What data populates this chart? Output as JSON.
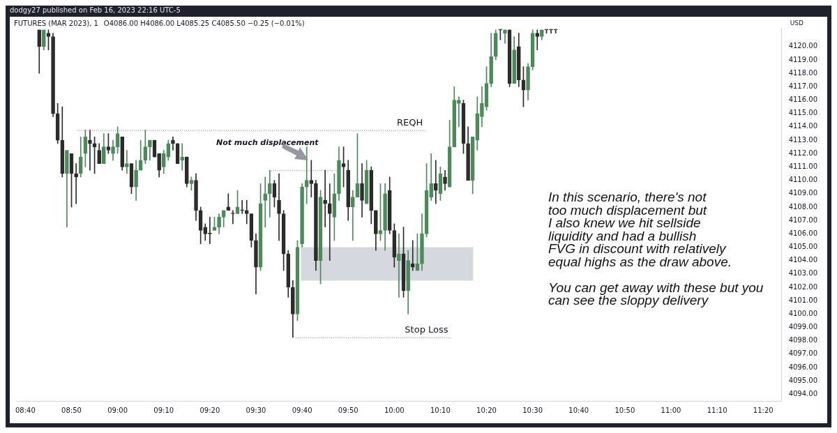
{
  "chart_data": {
    "type": "candlestick",
    "title": "FUTURES (MAR 2023), 1",
    "subtitle": "O4086.00 H4086.00 L4085.25 C4085.50 −0.25 (−0.01%)",
    "ylabel": "USD",
    "annotations": [
      "dodgy27 published on Feb 16, 2023 22:16 UTC-5",
      "Not much displacement",
      "In this scenario, there's not\ntoo much displacement but\nI also knew we hit sellside\nliquidity and had a bullish\nFVG in discount with relatively\nequal highs as the draw above.\n\nYou can get away with these but you\ncan see the sloppy delivery"
    ],
    "x": [
      "2023-02-16T08:43",
      "2023-02-16T08:44",
      "2023-02-16T08:45",
      "2023-02-16T08:46",
      "2023-02-16T08:47",
      "2023-02-16T08:48",
      "2023-02-16T08:49",
      "2023-02-16T08:50",
      "2023-02-16T08:51",
      "2023-02-16T08:52",
      "2023-02-16T08:53",
      "2023-02-16T08:54",
      "2023-02-16T08:55",
      "2023-02-16T08:56",
      "2023-02-16T08:57",
      "2023-02-16T08:58",
      "2023-02-16T08:59",
      "2023-02-16T09:00",
      "2023-02-16T09:01",
      "2023-02-16T09:02",
      "2023-02-16T09:03",
      "2023-02-16T09:04",
      "2023-02-16T09:05",
      "2023-02-16T09:06",
      "2023-02-16T09:07",
      "2023-02-16T09:08",
      "2023-02-16T09:09",
      "2023-02-16T09:10",
      "2023-02-16T09:11",
      "2023-02-16T09:12",
      "2023-02-16T09:13",
      "2023-02-16T09:14",
      "2023-02-16T09:15",
      "2023-02-16T09:16",
      "2023-02-16T09:17",
      "2023-02-16T09:18",
      "2023-02-16T09:19",
      "2023-02-16T09:20",
      "2023-02-16T09:21",
      "2023-02-16T09:22",
      "2023-02-16T09:23",
      "2023-02-16T09:24",
      "2023-02-16T09:25",
      "2023-02-16T09:26",
      "2023-02-16T09:27",
      "2023-02-16T09:28",
      "2023-02-16T09:29",
      "2023-02-16T09:30",
      "2023-02-16T09:31",
      "2023-02-16T09:32",
      "2023-02-16T09:33",
      "2023-02-16T09:34",
      "2023-02-16T09:35",
      "2023-02-16T09:36",
      "2023-02-16T09:37",
      "2023-02-16T09:38",
      "2023-02-16T09:39",
      "2023-02-16T09:40",
      "2023-02-16T09:41",
      "2023-02-16T09:42",
      "2023-02-16T09:43",
      "2023-02-16T09:44",
      "2023-02-16T09:45",
      "2023-02-16T09:46",
      "2023-02-16T09:47",
      "2023-02-16T09:48",
      "2023-02-16T09:49",
      "2023-02-16T09:50",
      "2023-02-16T09:51",
      "2023-02-16T09:52",
      "2023-02-16T09:53",
      "2023-02-16T09:54",
      "2023-02-16T09:55",
      "2023-02-16T09:56",
      "2023-02-16T09:57",
      "2023-02-16T09:58",
      "2023-02-16T09:59",
      "2023-02-16T10:00",
      "2023-02-16T10:01",
      "2023-02-16T10:02",
      "2023-02-16T10:03",
      "2023-02-16T10:04",
      "2023-02-16T10:05",
      "2023-02-16T10:06",
      "2023-02-16T10:07",
      "2023-02-16T10:08",
      "2023-02-16T10:09",
      "2023-02-16T10:10",
      "2023-02-16T10:11",
      "2023-02-16T10:12",
      "2023-02-16T10:13",
      "2023-02-16T10:14",
      "2023-02-16T10:15",
      "2023-02-16T10:16",
      "2023-02-16T10:17",
      "2023-02-16T10:18",
      "2023-02-16T10:19",
      "2023-02-16T10:20",
      "2023-02-16T10:21",
      "2023-02-16T10:22",
      "2023-02-16T10:23",
      "2023-02-16T10:24",
      "2023-02-16T10:25",
      "2023-02-16T10:26",
      "2023-02-16T10:27",
      "2023-02-16T10:28",
      "2023-02-16T10:29",
      "2023-02-16T10:30",
      "2023-02-16T10:31",
      "2023-02-16T10:32",
      "2023-02-16T10:33",
      "2023-02-16T10:34",
      "2023-02-16T10:35"
    ],
    "ohlc": [
      [
        4121.25,
        4121.25,
        4118.0,
        4120.0
      ],
      [
        4120.0,
        4121.25,
        4119.75,
        4121.25
      ],
      [
        4121.0,
        4121.25,
        4119.75,
        4120.75
      ],
      [
        4120.75,
        4121.0,
        4114.75,
        4115.0
      ],
      [
        4115.0,
        4115.75,
        4112.75,
        4113.0
      ],
      [
        4113.0,
        4115.5,
        4110.25,
        4110.5
      ],
      [
        4110.5,
        4112.25,
        4106.5,
        4112.25
      ],
      [
        4112.0,
        4112.0,
        4108.0,
        4110.5
      ],
      [
        4110.5,
        4111.25,
        4108.25,
        4110.25
      ],
      [
        4110.5,
        4113.25,
        4110.25,
        4111.75
      ],
      [
        4112.0,
        4113.75,
        4111.0,
        4113.25
      ],
      [
        4113.0,
        4113.75,
        4110.75,
        4112.75
      ],
      [
        4112.75,
        4113.25,
        4110.5,
        4112.5
      ],
      [
        4112.25,
        4112.75,
        4111.25,
        4111.25
      ],
      [
        4111.25,
        4113.5,
        4111.25,
        4112.5
      ],
      [
        4112.5,
        4113.5,
        4112.0,
        4112.25
      ],
      [
        4112.0,
        4113.0,
        4111.5,
        4112.5
      ],
      [
        4112.5,
        4114.0,
        4112.0,
        4113.5
      ],
      [
        4113.25,
        4113.25,
        4110.75,
        4111.0
      ],
      [
        4111.0,
        4112.25,
        4110.5,
        4111.25
      ],
      [
        4111.25,
        4111.25,
        4109.0,
        4109.5
      ],
      [
        4109.5,
        4111.5,
        4108.5,
        4110.75
      ],
      [
        4110.75,
        4113.0,
        4110.75,
        4111.5
      ],
      [
        4111.5,
        4113.75,
        4111.25,
        4112.5
      ],
      [
        4112.5,
        4113.0,
        4111.5,
        4113.0
      ],
      [
        4113.0,
        4113.0,
        4111.75,
        4111.75
      ],
      [
        4112.0,
        4112.0,
        4110.25,
        4110.75
      ],
      [
        4111.0,
        4112.25,
        4110.5,
        4112.0
      ],
      [
        4111.75,
        4113.0,
        4111.5,
        4112.75
      ],
      [
        4113.0,
        4113.25,
        4112.25,
        4112.75
      ],
      [
        4112.75,
        4112.75,
        4111.25,
        4111.25
      ],
      [
        4111.5,
        4112.75,
        4110.75,
        4111.75
      ],
      [
        4111.75,
        4111.75,
        4109.5,
        4109.75
      ],
      [
        4109.75,
        4110.25,
        4109.25,
        4110.0
      ],
      [
        4110.0,
        4110.5,
        4107.0,
        4107.75
      ],
      [
        4107.75,
        4108.0,
        4105.25,
        4106.25
      ],
      [
        4106.5,
        4106.75,
        4105.5,
        4106.0
      ],
      [
        4106.0,
        4107.25,
        4105.25,
        4106.0
      ],
      [
        4106.25,
        4107.25,
        4106.25,
        4106.5
      ],
      [
        4106.5,
        4107.5,
        4106.0,
        4107.25
      ],
      [
        4107.25,
        4107.75,
        4106.5,
        4107.75
      ],
      [
        4108.0,
        4109.0,
        4107.75,
        4107.75
      ],
      [
        4107.5,
        4107.75,
        4106.75,
        4107.5
      ],
      [
        4107.5,
        4109.25,
        4107.5,
        4108.0
      ],
      [
        4107.75,
        4108.5,
        4107.5,
        4107.75
      ],
      [
        4107.75,
        4108.5,
        4106.75,
        4107.5
      ],
      [
        4107.5,
        4107.5,
        4105.0,
        4105.5
      ],
      [
        4105.5,
        4106.0,
        4101.5,
        4103.5
      ],
      [
        4103.5,
        4109.75,
        4103.25,
        4108.25
      ],
      [
        4108.5,
        4110.25,
        4106.5,
        4109.0
      ],
      [
        4109.0,
        4110.75,
        4107.25,
        4109.75
      ],
      [
        4109.75,
        4110.0,
        4108.0,
        4108.75
      ],
      [
        4108.5,
        4110.5,
        4105.5,
        4107.5
      ],
      [
        4107.5,
        4107.75,
        4103.25,
        4104.5
      ],
      [
        4104.5,
        4104.75,
        4101.25,
        4102.0
      ],
      [
        4102.0,
        4102.5,
        4098.25,
        4100.0
      ],
      [
        4100.0,
        4105.5,
        4099.5,
        4105.0
      ],
      [
        4105.25,
        4109.75,
        4105.0,
        4109.5
      ],
      [
        4109.5,
        4112.5,
        4108.25,
        4110.0
      ],
      [
        4110.0,
        4111.5,
        4108.75,
        4109.75
      ],
      [
        4109.75,
        4110.0,
        4103.25,
        4104.0
      ],
      [
        4104.0,
        4109.25,
        4102.25,
        4108.75
      ],
      [
        4108.5,
        4110.75,
        4106.5,
        4108.25
      ],
      [
        4108.25,
        4109.75,
        4104.0,
        4107.5
      ],
      [
        4107.25,
        4110.5,
        4105.5,
        4109.0
      ],
      [
        4109.0,
        4112.5,
        4108.5,
        4111.5
      ],
      [
        4111.25,
        4112.5,
        4109.5,
        4111.0
      ],
      [
        4110.75,
        4111.5,
        4107.0,
        4108.0
      ],
      [
        4108.0,
        4109.25,
        4105.5,
        4108.75
      ],
      [
        4108.75,
        4113.5,
        4108.75,
        4109.75
      ],
      [
        4109.75,
        4111.25,
        4107.25,
        4108.5
      ],
      [
        4108.25,
        4111.5,
        4108.25,
        4110.75
      ],
      [
        4110.75,
        4111.0,
        4106.75,
        4107.75
      ],
      [
        4107.75,
        4107.75,
        4104.75,
        4106.0
      ],
      [
        4106.0,
        4109.75,
        4105.5,
        4106.25
      ],
      [
        4106.25,
        4109.75,
        4104.75,
        4109.0
      ],
      [
        4109.25,
        4110.25,
        4106.0,
        4106.25
      ],
      [
        4106.25,
        4106.75,
        4103.5,
        4104.25
      ],
      [
        4104.0,
        4106.0,
        4101.25,
        4104.5
      ],
      [
        4104.5,
        4106.5,
        4101.25,
        4101.75
      ],
      [
        4101.75,
        4104.75,
        4100.0,
        4104.0
      ],
      [
        4103.75,
        4105.5,
        4103.25,
        4103.5
      ],
      [
        4103.25,
        4106.0,
        4103.25,
        4103.75
      ],
      [
        4103.75,
        4107.5,
        4103.25,
        4106.0
      ],
      [
        4106.0,
        4111.25,
        4105.75,
        4109.25
      ],
      [
        4108.75,
        4112.0,
        4108.5,
        4109.75
      ],
      [
        4109.75,
        4111.5,
        4108.25,
        4109.25
      ],
      [
        4109.0,
        4111.0,
        4108.5,
        4110.5
      ],
      [
        4110.25,
        4110.75,
        4109.25,
        4109.75
      ],
      [
        4109.5,
        4114.5,
        4109.5,
        4112.5
      ],
      [
        4112.5,
        4117.0,
        4112.5,
        4116.0
      ],
      [
        4115.75,
        4116.25,
        4114.0,
        4116.0
      ],
      [
        4115.75,
        4116.0,
        4112.0,
        4112.75
      ],
      [
        4112.75,
        4114.0,
        4110.0,
        4110.0
      ],
      [
        4110.0,
        4113.25,
        4109.0,
        4113.25
      ],
      [
        4113.0,
        4116.25,
        4112.25,
        4115.0
      ],
      [
        4114.75,
        4117.0,
        4114.0,
        4115.75
      ],
      [
        4115.5,
        4118.5,
        4115.25,
        4117.25
      ],
      [
        4117.25,
        4121.0,
        4117.0,
        4119.25
      ],
      [
        4119.25,
        4121.25,
        4119.0,
        4121.0
      ],
      [
        4121.25,
        4121.25,
        4120.5,
        4121.25
      ],
      [
        4121.0,
        4121.25,
        4120.25,
        4121.25
      ],
      [
        4121.25,
        4121.25,
        4117.0,
        4117.25
      ],
      [
        4117.25,
        4120.75,
        4117.25,
        4119.75
      ],
      [
        4120.0,
        4121.0,
        4117.0,
        4117.5
      ],
      [
        4117.5,
        4118.5,
        4115.5,
        4116.75
      ],
      [
        4116.75,
        4118.75,
        4116.0,
        4118.5
      ],
      [
        4118.5,
        4121.25,
        4118.25,
        4121.0
      ],
      [
        4121.0,
        4121.25,
        4119.75,
        4120.75
      ],
      [
        4120.75,
        4121.25,
        4120.5,
        4121.25
      ],
      [
        4121.25,
        4121.25,
        4121.0,
        4121.25
      ],
      [
        4121.25,
        4121.25,
        4121.0,
        4121.25
      ],
      [
        4121.25,
        4121.25,
        4121.0,
        4121.25
      ]
    ],
    "colors": [
      "#2b2b2b",
      "#4c8a5a",
      "#2b2b2b",
      "#2b2b2b",
      "#2b2b2b",
      "#2b2b2b",
      "#4c8a5a",
      "#2b2b2b",
      "#2b2b2b",
      "#4c8a5a",
      "#4c8a5a",
      "#2b2b2b",
      "#2b2b2b",
      "#2b2b2b",
      "#4c8a5a",
      "#2b2b2b",
      "#4c8a5a",
      "#4c8a5a",
      "#2b2b2b",
      "#4c8a5a",
      "#2b2b2b",
      "#4c8a5a",
      "#4c8a5a",
      "#4c8a5a",
      "#4c8a5a",
      "#2b2b2b",
      "#2b2b2b",
      "#4c8a5a",
      "#4c8a5a",
      "#2b2b2b",
      "#2b2b2b",
      "#4c8a5a",
      "#2b2b2b",
      "#4c8a5a",
      "#2b2b2b",
      "#2b2b2b",
      "#2b2b2b",
      "#2b2b2b",
      "#4c8a5a",
      "#4c8a5a",
      "#4c8a5a",
      "#2b2b2b",
      "#2b2b2b",
      "#4c8a5a",
      "#2b2b2b",
      "#2b2b2b",
      "#2b2b2b",
      "#2b2b2b",
      "#4c8a5a",
      "#4c8a5a",
      "#4c8a5a",
      "#2b2b2b",
      "#2b2b2b",
      "#2b2b2b",
      "#2b2b2b",
      "#2b2b2b",
      "#4c8a5a",
      "#4c8a5a",
      "#4c8a5a",
      "#2b2b2b",
      "#2b2b2b",
      "#4c8a5a",
      "#2b2b2b",
      "#2b2b2b",
      "#4c8a5a",
      "#4c8a5a",
      "#2b2b2b",
      "#2b2b2b",
      "#4c8a5a",
      "#4c8a5a",
      "#2b2b2b",
      "#4c8a5a",
      "#2b2b2b",
      "#2b2b2b",
      "#4c8a5a",
      "#4c8a5a",
      "#2b2b2b",
      "#2b2b2b",
      "#4c8a5a",
      "#2b2b2b",
      "#4c8a5a",
      "#2b2b2b",
      "#4c8a5a",
      "#4c8a5a",
      "#4c8a5a",
      "#4c8a5a",
      "#2b2b2b",
      "#4c8a5a",
      "#2b2b2b",
      "#4c8a5a",
      "#4c8a5a",
      "#4c8a5a",
      "#2b2b2b",
      "#2b2b2b",
      "#4c8a5a",
      "#4c8a5a",
      "#4c8a5a",
      "#4c8a5a",
      "#4c8a5a",
      "#4c8a5a",
      "#2b2b2b",
      "#4c8a5a",
      "#2b2b2b",
      "#4c8a5a",
      "#2b2b2b",
      "#2b2b2b",
      "#4c8a5a",
      "#4c8a5a",
      "#2b2b2b",
      "#4c8a5a",
      "#2b2b2b",
      "#2b2b2b",
      "#2b2b2b"
    ],
    "xlim": [
      "2023-02-16T08:38",
      "2023-02-16T11:24"
    ],
    "xticks": [
      {
        "value": "2023-02-16T08:40",
        "label": "08:40"
      },
      {
        "value": "2023-02-16T08:50",
        "label": "08:50"
      },
      {
        "value": "2023-02-16T09:00",
        "label": "09:00"
      },
      {
        "value": "2023-02-16T09:10",
        "label": "09:10"
      },
      {
        "value": "2023-02-16T09:20",
        "label": "09:20"
      },
      {
        "value": "2023-02-16T09:30",
        "label": "09:30"
      },
      {
        "value": "2023-02-16T09:40",
        "label": "09:40"
      },
      {
        "value": "2023-02-16T09:50",
        "label": "09:50"
      },
      {
        "value": "2023-02-16T10:00",
        "label": "10:00"
      },
      {
        "value": "2023-02-16T10:10",
        "label": "10:10"
      },
      {
        "value": "2023-02-16T10:20",
        "label": "10:20"
      },
      {
        "value": "2023-02-16T10:30",
        "label": "10:30"
      },
      {
        "value": "2023-02-16T10:40",
        "label": "10:40"
      },
      {
        "value": "2023-02-16T10:50",
        "label": "10:50"
      },
      {
        "value": "2023-02-16T11:00",
        "label": "11:00"
      },
      {
        "value": "2023-02-16T11:10",
        "label": "11:10"
      },
      {
        "value": "2023-02-16T11:20",
        "label": "11:20"
      }
    ],
    "ylim": [
      4093.5,
      4121.4
    ],
    "yticks": [
      {
        "value": 4094,
        "label": "4094.00"
      },
      {
        "value": 4095,
        "label": "4095.00"
      },
      {
        "value": 4096,
        "label": "4096.00"
      },
      {
        "value": 4097,
        "label": "4097.00"
      },
      {
        "value": 4098,
        "label": "4098.00"
      },
      {
        "value": 4099,
        "label": "4099.00"
      },
      {
        "value": 4100,
        "label": "4100.00"
      },
      {
        "value": 4101,
        "label": "4101.00"
      },
      {
        "value": 4102,
        "label": "4102.00"
      },
      {
        "value": 4103,
        "label": "4103.00"
      },
      {
        "value": 4104,
        "label": "4104.00"
      },
      {
        "value": 4105,
        "label": "4105.00"
      },
      {
        "value": 4106,
        "label": "4106.00"
      },
      {
        "value": 4107,
        "label": "4107.00"
      },
      {
        "value": 4108,
        "label": "4108.00"
      },
      {
        "value": 4109,
        "label": "4109.00"
      },
      {
        "value": 4110,
        "label": "4110.00"
      },
      {
        "value": 4111,
        "label": "4111.00"
      },
      {
        "value": 4112,
        "label": "4112.00"
      },
      {
        "value": 4113,
        "label": "4113.00"
      },
      {
        "value": 4114,
        "label": "4114.00"
      },
      {
        "value": 4115,
        "label": "4115.00"
      },
      {
        "value": 4116,
        "label": "4116.00"
      },
      {
        "value": 4117,
        "label": "4117.00"
      },
      {
        "value": 4118,
        "label": "4118.00"
      },
      {
        "value": 4119,
        "label": "4119.00"
      },
      {
        "value": 4120,
        "label": "4120.00"
      }
    ],
    "ref_lines": [
      {
        "axis": "y",
        "value": 4113.75,
        "label": "REQH",
        "color": "#787b86",
        "line_style": "dotted"
      },
      {
        "axis": "y",
        "value": 4110.75,
        "color": "#787b86",
        "line_style": "dotted"
      },
      {
        "axis": "y",
        "value": 4098.25,
        "label": "Stop Loss",
        "color": "#787b86",
        "line_style": "dotted"
      }
    ],
    "bands": [
      {
        "axis": "y",
        "from": 4102.5,
        "to": 4105.0,
        "color": "#d1d4dc"
      }
    ]
  }
}
